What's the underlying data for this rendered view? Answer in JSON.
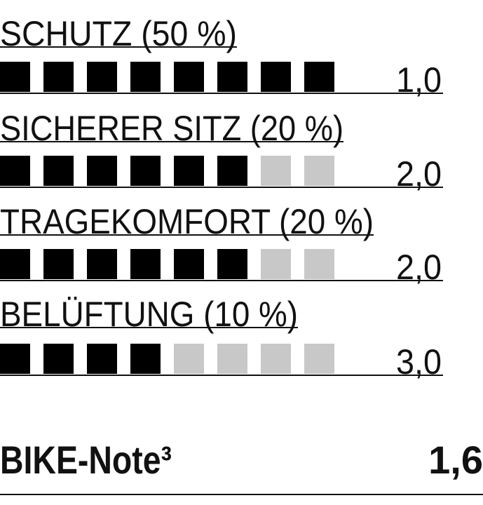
{
  "chart_data": {
    "type": "rating",
    "max_squares": 8,
    "colors": {
      "filled": "#000000",
      "empty": "#c8c8c8",
      "text": "#111111"
    },
    "rows": [
      {
        "label": "SCHUTZ (50 %)",
        "filled": 8,
        "value": "1,0"
      },
      {
        "label": "SICHERER SITZ (20 %)",
        "filled": 6,
        "value": "2,0"
      },
      {
        "label": "TRAGEKOMFORT (20 %)",
        "filled": 6,
        "value": "2,0"
      },
      {
        "label": "BELÜFTUNG (10 %)",
        "filled": 4,
        "value": "3,0"
      }
    ],
    "total": {
      "label": "BIKE-Note³",
      "value": "1,6"
    }
  }
}
